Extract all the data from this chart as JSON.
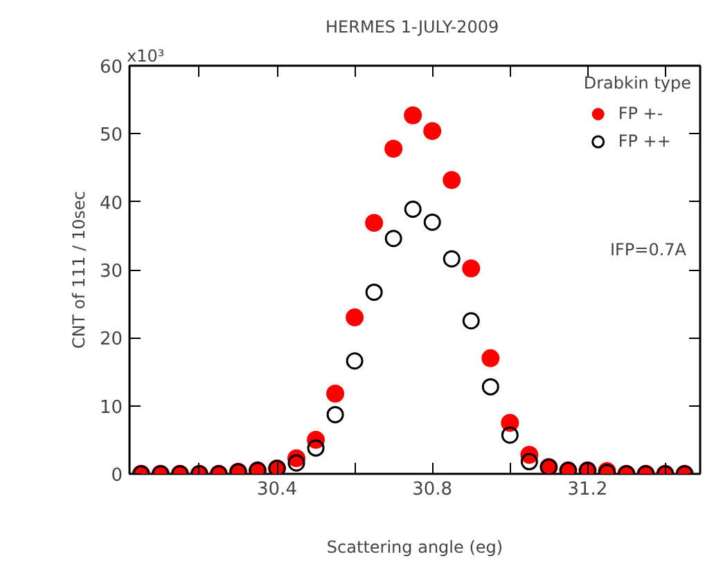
{
  "chart_data": {
    "type": "scatter",
    "title": "HERMES  1-JULY-2009",
    "xlabel": "Scattering angle (eg)",
    "ylabel": "CNT of 111 / 10sec",
    "legend_title": "Drabkin type",
    "annotations": [
      "x10³",
      "IFP=0.7A"
    ],
    "x": [
      30.05,
      30.1,
      30.15,
      30.2,
      30.25,
      30.3,
      30.35,
      30.4,
      30.45,
      30.5,
      30.55,
      30.6,
      30.65,
      30.7,
      30.75,
      30.8,
      30.85,
      30.9,
      30.95,
      31.0,
      31.05,
      31.1,
      31.15,
      31.2,
      31.25,
      31.3,
      31.35,
      31.4,
      31.45
    ],
    "series": [
      {
        "name": "FP +-",
        "color": "#ff0000",
        "marker": "circle",
        "values": [
          0,
          0,
          0,
          0,
          0,
          0.3,
          0.5,
          0.8,
          2.3,
          5.0,
          11.8,
          23.0,
          36.9,
          47.8,
          52.7,
          50.4,
          43.2,
          30.2,
          17.0,
          7.5,
          2.8,
          1.0,
          0.5,
          0.5,
          0.4,
          0,
          0,
          0,
          0
        ]
      },
      {
        "name": "FP ++",
        "color": "#000000",
        "marker": "circle_open",
        "values": [
          0,
          0,
          0,
          0,
          0,
          0.3,
          0.5,
          0.8,
          1.6,
          3.8,
          8.7,
          16.6,
          26.7,
          34.6,
          38.9,
          37.0,
          31.6,
          22.5,
          12.8,
          5.7,
          1.8,
          1.0,
          0.5,
          0.5,
          0.2,
          0,
          0,
          0,
          0
        ]
      }
    ],
    "xlim": [
      30.02,
      31.49
    ],
    "ylim": [
      0,
      60
    ],
    "xticks": [
      {
        "value": 30.2,
        "label": null
      },
      30.4,
      {
        "value": 30.6,
        "label": null
      },
      30.8,
      {
        "value": 31.0,
        "label": null
      },
      31.2,
      {
        "value": 31.4,
        "label": null
      }
    ],
    "yticks": [
      0,
      10,
      20,
      30,
      40,
      50,
      60
    ],
    "grid": false,
    "legend": "top right"
  }
}
